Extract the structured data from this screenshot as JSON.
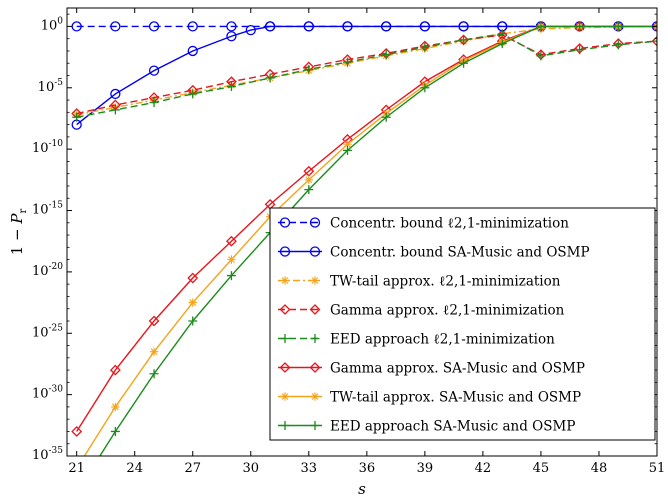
{
  "chart_data": {
    "type": "line",
    "title": "",
    "xlabel": "s",
    "ylabel": "1 − P_r",
    "y_log_scale": true,
    "xlim": [
      20.5,
      51
    ],
    "ylim_log10": [
      -35,
      1.5
    ],
    "x_ticks": [
      21,
      24,
      27,
      30,
      33,
      36,
      39,
      42,
      45,
      48,
      51
    ],
    "x_tick_labels": [
      "21",
      "24",
      "27",
      "30",
      "33",
      "36",
      "39",
      "42",
      "45",
      "48",
      "51"
    ],
    "y_ticks_log10": [
      0,
      -5,
      -10,
      -15,
      -20,
      -25,
      -30,
      -35
    ],
    "y_tick_labels": [
      "10^0",
      "10^-5",
      "10^-10",
      "10^-15",
      "10^-20",
      "10^-25",
      "10^-30",
      "10^-35"
    ],
    "grid": false,
    "legend_position": "bottom-right",
    "series": [
      {
        "name": "Concentr. bound ℓ2,1-minimization",
        "color": "#0000ee",
        "dash": "dashed",
        "marker": "circle",
        "x": [
          21,
          23,
          25,
          27,
          29,
          31,
          33,
          35,
          37,
          39,
          41,
          43,
          45,
          47,
          49,
          51
        ],
        "log10_y": [
          0,
          0,
          0,
          0,
          0,
          0,
          0,
          0,
          0,
          0,
          0,
          0,
          0,
          0,
          0,
          0
        ]
      },
      {
        "name": "Concentr. bound SA-Music and OSMP",
        "color": "#0000ee",
        "dash": "solid",
        "marker": "circle",
        "x": [
          21,
          23,
          25,
          27,
          29,
          30,
          31,
          33,
          35,
          37,
          39,
          41,
          43,
          45,
          47,
          49,
          51
        ],
        "log10_y": [
          -8,
          -5.5,
          -3.6,
          -2,
          -0.8,
          -0.3,
          0,
          0,
          0,
          0,
          0,
          0,
          0,
          0,
          0,
          0,
          0
        ]
      },
      {
        "name": "TW-tail approx. ℓ2,1-minimization",
        "color": "#f5a31a",
        "dash": "dashdot",
        "marker": "star",
        "x": [
          21,
          23,
          25,
          27,
          29,
          31,
          33,
          35,
          37,
          39,
          41,
          43,
          45,
          47,
          49,
          51
        ],
        "log10_y": [
          -7.2,
          -6.6,
          -6,
          -5.4,
          -4.8,
          -4.2,
          -3.6,
          -3,
          -2.4,
          -1.8,
          -1.2,
          -0.6,
          -0.2,
          -0.1,
          -0.05,
          0
        ]
      },
      {
        "name": "Gamma approx. ℓ2,1-minimization",
        "color": "#e8151b",
        "dash": "dashed",
        "marker": "diamond",
        "x": [
          21,
          23,
          25,
          27,
          29,
          31,
          33,
          35,
          37,
          39,
          41,
          43,
          45,
          47,
          49,
          51
        ],
        "log10_y": [
          -7.1,
          -6.4,
          -5.8,
          -5.2,
          -4.5,
          -3.9,
          -3.3,
          -2.7,
          -2.2,
          -1.6,
          -1.1,
          -0.7,
          -2.3,
          -1.8,
          -1.4,
          -1.2
        ]
      },
      {
        "name": "EED approach ℓ2,1-minimization",
        "color": "#1a8c1a",
        "dash": "dashed",
        "marker": "plus",
        "x": [
          21,
          23,
          25,
          27,
          29,
          31,
          33,
          35,
          37,
          39,
          41,
          43,
          45,
          47,
          49,
          51
        ],
        "log10_y": [
          -7.4,
          -6.8,
          -6.2,
          -5.5,
          -4.9,
          -4.2,
          -3.5,
          -2.9,
          -2.3,
          -1.7,
          -1.1,
          -0.6,
          -2.4,
          -1.9,
          -1.5,
          -1.2
        ]
      },
      {
        "name": "Gamma approx. SA-Music and OSMP",
        "color": "#e8151b",
        "dash": "solid",
        "marker": "diamond",
        "x": [
          21,
          23,
          25,
          27,
          29,
          31,
          33,
          35,
          37,
          39,
          41,
          43,
          45,
          47,
          49,
          51
        ],
        "log10_y": [
          -33,
          -28,
          -24,
          -20.5,
          -17.5,
          -14.5,
          -11.8,
          -9.2,
          -6.8,
          -4.5,
          -2.7,
          -1.2,
          0,
          0,
          0,
          0
        ]
      },
      {
        "name": "TW-tail approx. SA-Music and OSMP",
        "color": "#f5a31a",
        "dash": "solid",
        "marker": "star",
        "x": [
          21,
          23,
          25,
          27,
          29,
          31,
          33,
          35,
          37,
          39,
          41,
          43,
          45,
          47,
          49,
          51
        ],
        "log10_y": [
          -36,
          -31,
          -26.5,
          -22.5,
          -19,
          -15.5,
          -12.5,
          -9.6,
          -7.1,
          -4.8,
          -2.8,
          -1.3,
          0,
          0,
          0,
          0
        ]
      },
      {
        "name": "EED approach SA-Music and OSMP",
        "color": "#1a8c1a",
        "dash": "solid",
        "marker": "plus",
        "x": [
          21,
          23,
          25,
          27,
          29,
          31,
          33,
          35,
          37,
          39,
          41,
          43,
          45,
          47,
          49,
          51
        ],
        "log10_y": [
          -38,
          -33,
          -28.3,
          -24,
          -20.3,
          -16.8,
          -13.3,
          -10.1,
          -7.4,
          -5,
          -3,
          -1.4,
          0,
          0,
          0,
          0
        ]
      }
    ]
  }
}
